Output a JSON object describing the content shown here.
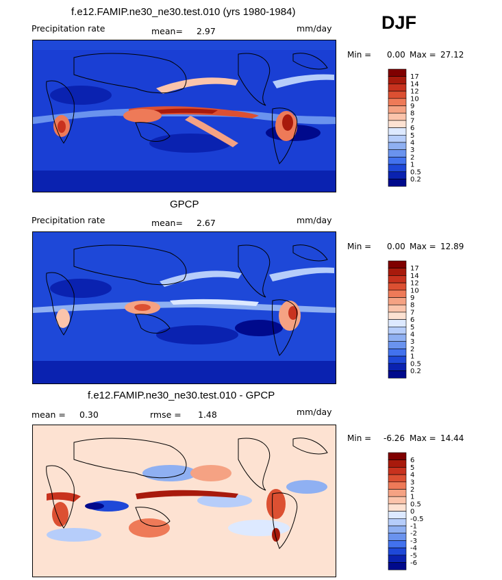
{
  "season": "DJF",
  "colorbars": {
    "precip": {
      "labels": [
        "17",
        "14",
        "12",
        "10",
        "9",
        "8",
        "7",
        "6",
        "5",
        "4",
        "3",
        "2",
        "1",
        "0.5",
        "0.2"
      ],
      "colors": [
        "#7f0000",
        "#a81a0c",
        "#c8321e",
        "#dc5032",
        "#ee7a58",
        "#f5a283",
        "#fbc4ab",
        "#fde2d2",
        "#dde9ff",
        "#b6cdfa",
        "#8fb0f2",
        "#6a93ee",
        "#4272ee",
        "#1e48d8",
        "#0a22b0",
        "#000a8c"
      ]
    },
    "diff": {
      "labels": [
        "6",
        "5",
        "4",
        "3",
        "2",
        "1",
        "0.5",
        "0",
        "-0.5",
        "-1",
        "-2",
        "-3",
        "-4",
        "-5",
        "-6"
      ],
      "colors": [
        "#7f0000",
        "#a81a0c",
        "#c8321e",
        "#dc5032",
        "#ee7a58",
        "#f5a283",
        "#fbc4ab",
        "#fde2d2",
        "#dde9ff",
        "#b6cdfa",
        "#8fb0f2",
        "#6a93ee",
        "#4272ee",
        "#1e48d8",
        "#0a22b0",
        "#000a8c"
      ]
    }
  },
  "panels": [
    {
      "title": "f.e12.FAMIP.ne30_ne30.test.010 (yrs 1980-1984)",
      "left_label": "Precipitation rate",
      "stat_label": "mean=",
      "stat_value": "2.97",
      "units": "mm/day",
      "min_label": "Min =",
      "min_value": "0.00",
      "max_label": "Max =",
      "max_value": "27.12",
      "colorbar": "precip",
      "background": "#1a3fd4"
    },
    {
      "title": "GPCP",
      "left_label": "Precipitation rate",
      "stat_label": "mean=",
      "stat_value": "2.67",
      "units": "mm/day",
      "min_label": "Min =",
      "min_value": "0.00",
      "max_label": "Max =",
      "max_value": "12.89",
      "colorbar": "precip",
      "background": "#1a3fd4"
    },
    {
      "title": "f.e12.FAMIP.ne30_ne30.test.010 - GPCP",
      "left_label": "mean =",
      "left_value": "0.30",
      "stat_label": "rmse =",
      "stat_value": "1.48",
      "units": "mm/day",
      "min_label": "Min =",
      "min_value": "-6.26",
      "max_label": "Max =",
      "max_value": "14.44",
      "colorbar": "diff",
      "background": "#fde2d2"
    }
  ],
  "chart_data": [
    {
      "type": "heatmap",
      "title": "f.e12.FAMIP.ne30_ne30.test.010 (yrs 1980-1984)",
      "variable": "Precipitation rate",
      "units": "mm/day",
      "season": "DJF",
      "mean": 2.97,
      "min": 0.0,
      "max": 27.12,
      "contour_levels": [
        0.2,
        0.5,
        1,
        2,
        3,
        4,
        5,
        6,
        7,
        8,
        9,
        10,
        12,
        14,
        17
      ],
      "grid": false
    },
    {
      "type": "heatmap",
      "title": "GPCP",
      "variable": "Precipitation rate",
      "units": "mm/day",
      "season": "DJF",
      "mean": 2.67,
      "min": 0.0,
      "max": 12.89,
      "contour_levels": [
        0.2,
        0.5,
        1,
        2,
        3,
        4,
        5,
        6,
        7,
        8,
        9,
        10,
        12,
        14,
        17
      ],
      "grid": false
    },
    {
      "type": "heatmap",
      "title": "f.e12.FAMIP.ne30_ne30.test.010 - GPCP",
      "units": "mm/day",
      "season": "DJF",
      "mean": 0.3,
      "rmse": 1.48,
      "min": -6.26,
      "max": 14.44,
      "contour_levels": [
        -6,
        -5,
        -4,
        -3,
        -2,
        -1,
        -0.5,
        0,
        0.5,
        1,
        2,
        3,
        4,
        5,
        6
      ],
      "grid": false
    }
  ]
}
